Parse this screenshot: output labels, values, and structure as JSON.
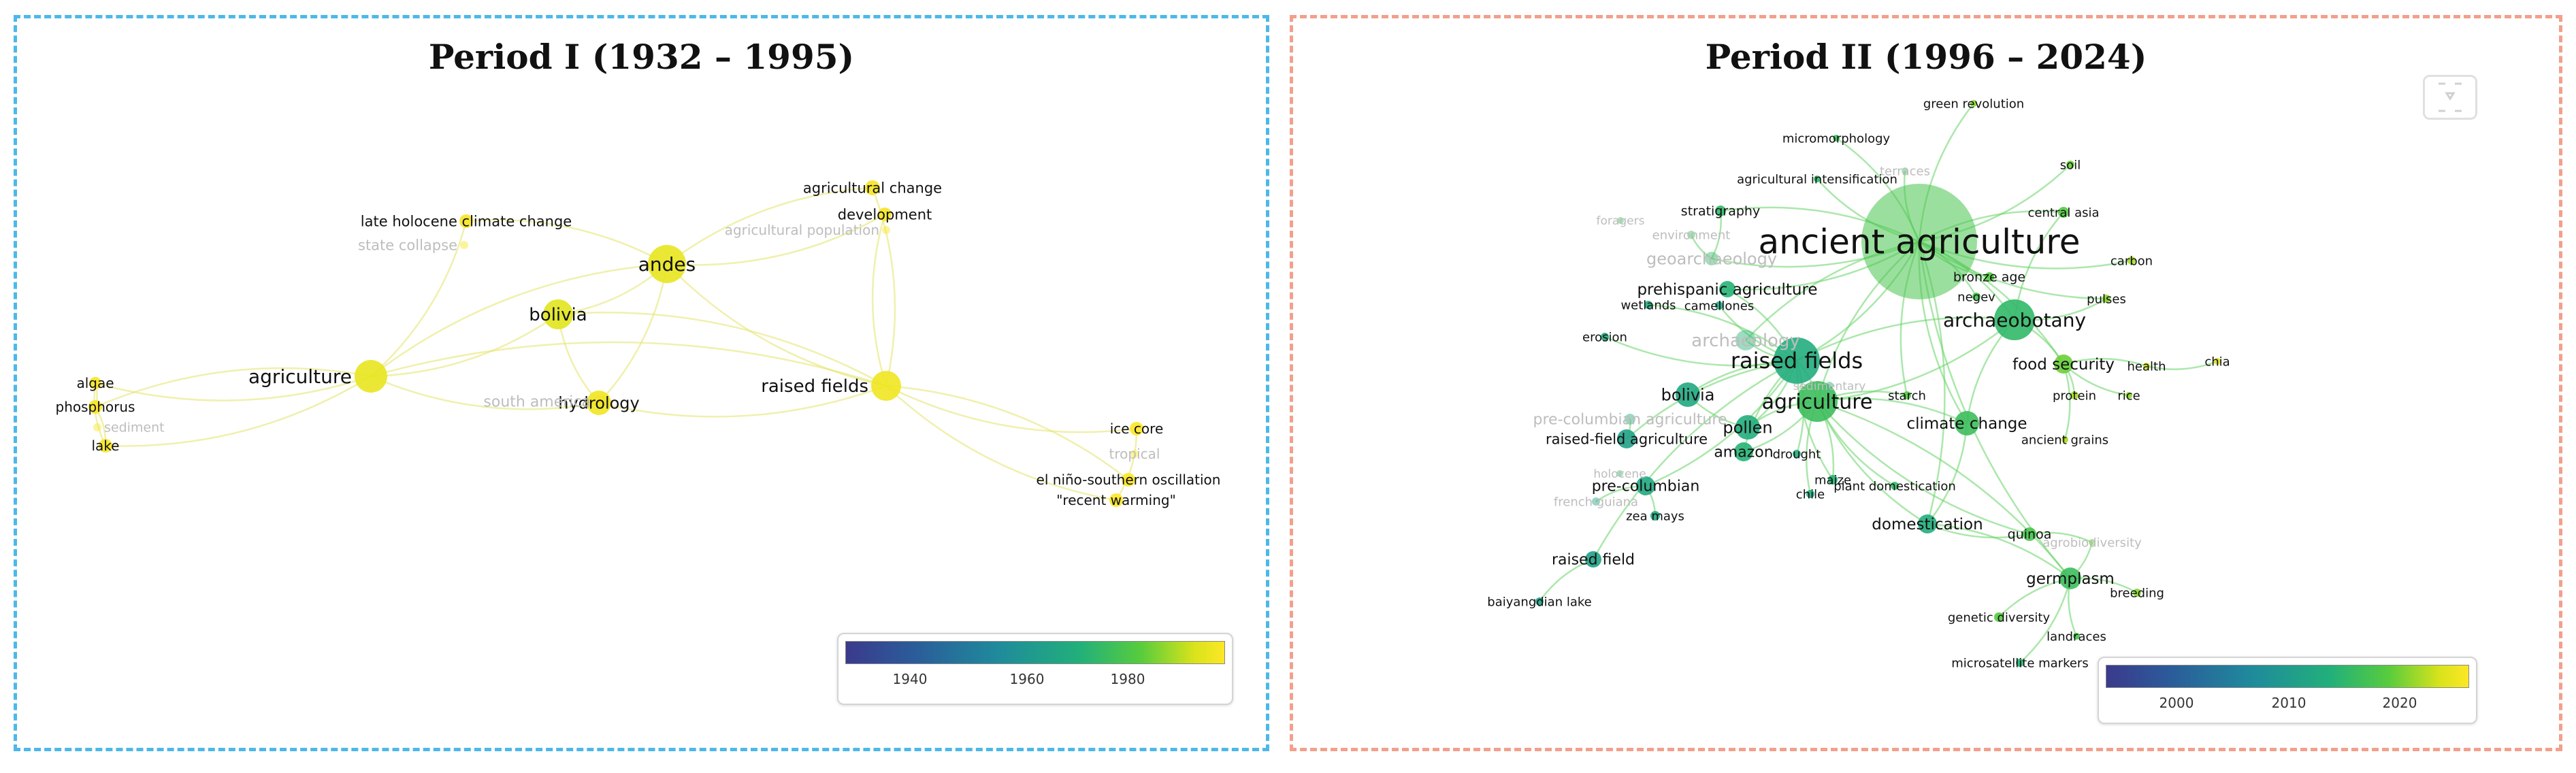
{
  "panels": [
    {
      "title": "Period I (1932 – 1995)",
      "legend": {
        "ticks": [
          "1940",
          "1960",
          "1980"
        ]
      },
      "nodes": [
        {
          "label": "agriculture",
          "year": 1992,
          "weight": 6,
          "fade": false
        },
        {
          "label": "andes",
          "year": 1992,
          "weight": 6,
          "fade": false
        },
        {
          "label": "bolivia",
          "year": 1991,
          "weight": 5,
          "fade": false
        },
        {
          "label": "raised fields",
          "year": 1993,
          "weight": 5,
          "fade": false
        },
        {
          "label": "hydrology",
          "year": 1993,
          "weight": 4,
          "fade": false
        },
        {
          "label": "south america",
          "year": 1993,
          "weight": 3,
          "fade": true
        },
        {
          "label": "late holocene climate change",
          "year": 1994,
          "weight": 2,
          "fade": false
        },
        {
          "label": "state collapse",
          "year": 1994,
          "weight": 1,
          "fade": true
        },
        {
          "label": "agricultural change",
          "year": 1994,
          "weight": 2,
          "fade": false
        },
        {
          "label": "development",
          "year": 1994,
          "weight": 2,
          "fade": false
        },
        {
          "label": "agricultural population",
          "year": 1994,
          "weight": 1,
          "fade": true
        },
        {
          "label": "algae",
          "year": 1994,
          "weight": 2,
          "fade": false
        },
        {
          "label": "phosphorus",
          "year": 1994,
          "weight": 2,
          "fade": false
        },
        {
          "label": "sediment",
          "year": 1994,
          "weight": 1,
          "fade": true
        },
        {
          "label": "lake",
          "year": 1994,
          "weight": 2,
          "fade": false
        },
        {
          "label": "ice core",
          "year": 1995,
          "weight": 2,
          "fade": false
        },
        {
          "label": "tropical",
          "year": 1995,
          "weight": 1,
          "fade": true
        },
        {
          "label": "el niño-southern oscillation",
          "year": 1995,
          "weight": 2,
          "fade": false
        },
        {
          "label": "\"recent warming\"",
          "year": 1995,
          "weight": 2,
          "fade": false
        }
      ],
      "links": [
        [
          "agriculture",
          "andes"
        ],
        [
          "agriculture",
          "bolivia"
        ],
        [
          "agriculture",
          "raised fields"
        ],
        [
          "agriculture",
          "hydrology"
        ],
        [
          "agriculture",
          "algae"
        ],
        [
          "agriculture",
          "phosphorus"
        ],
        [
          "agriculture",
          "lake"
        ],
        [
          "agriculture",
          "late holocene climate change"
        ],
        [
          "andes",
          "bolivia"
        ],
        [
          "andes",
          "raised fields"
        ],
        [
          "andes",
          "hydrology"
        ],
        [
          "andes",
          "late holocene climate change"
        ],
        [
          "andes",
          "agricultural change"
        ],
        [
          "andes",
          "development"
        ],
        [
          "bolivia",
          "raised fields"
        ],
        [
          "bolivia",
          "hydrology"
        ],
        [
          "raised fields",
          "hydrology"
        ],
        [
          "raised fields",
          "agricultural change"
        ],
        [
          "raised fields",
          "development"
        ],
        [
          "raised fields",
          "ice core"
        ],
        [
          "raised fields",
          "el niño-southern oscillation"
        ],
        [
          "raised fields",
          "\"recent warming\""
        ],
        [
          "hydrology",
          "south america"
        ],
        [
          "phosphorus",
          "algae"
        ],
        [
          "phosphorus",
          "lake"
        ],
        [
          "algae",
          "lake"
        ],
        [
          "ice core",
          "\"recent warming\""
        ]
      ]
    },
    {
      "title": "Period II (1996 – 2024)",
      "legend": {
        "ticks": [
          "2000",
          "2010",
          "2020"
        ]
      },
      "nodes": [
        {
          "label": "ancient agriculture",
          "year": 2017,
          "weight": 10,
          "fade": false
        },
        {
          "label": "archaeobotany",
          "year": 2015,
          "weight": 6,
          "fade": false
        },
        {
          "label": "raised fields",
          "year": 2013,
          "weight": 6,
          "fade": false
        },
        {
          "label": "agriculture",
          "year": 2016,
          "weight": 6,
          "fade": false
        },
        {
          "label": "archaeology",
          "year": 2014,
          "weight": 4,
          "fade": true
        },
        {
          "label": "bolivia",
          "year": 2012,
          "weight": 4,
          "fade": false
        },
        {
          "label": "pollen",
          "year": 2013,
          "weight": 4,
          "fade": false
        },
        {
          "label": "climate change",
          "year": 2016,
          "weight": 4,
          "fade": false
        },
        {
          "label": "prehispanic agriculture",
          "year": 2014,
          "weight": 3,
          "fade": false
        },
        {
          "label": "geoarchaeology",
          "year": 2015,
          "weight": 3,
          "fade": true
        },
        {
          "label": "food security",
          "year": 2019,
          "weight": 3,
          "fade": false
        },
        {
          "label": "domestication",
          "year": 2013,
          "weight": 3,
          "fade": false
        },
        {
          "label": "germplasm",
          "year": 2016,
          "weight": 3,
          "fade": false
        },
        {
          "label": "amazon",
          "year": 2014,
          "weight": 3,
          "fade": false
        },
        {
          "label": "pre-columbian",
          "year": 2012,
          "weight": 3,
          "fade": false
        },
        {
          "label": "raised-field agriculture",
          "year": 2011,
          "weight": 3,
          "fade": false
        },
        {
          "label": "raised field",
          "year": 2011,
          "weight": 3,
          "fade": false
        },
        {
          "label": "pre-columbian agriculture",
          "year": 2013,
          "weight": 2,
          "fade": true
        },
        {
          "label": "green revolution",
          "year": 2020,
          "weight": 1,
          "fade": false
        },
        {
          "label": "micromorphology",
          "year": 2016,
          "weight": 1,
          "fade": false
        },
        {
          "label": "agricultural intensification",
          "year": 2015,
          "weight": 1,
          "fade": false
        },
        {
          "label": "terraces",
          "year": 2016,
          "weight": 1,
          "fade": true
        },
        {
          "label": "soil",
          "year": 2019,
          "weight": 1,
          "fade": false
        },
        {
          "label": "stratigraphy",
          "year": 2015,
          "weight": 1,
          "fade": false
        },
        {
          "label": "central asia",
          "year": 2018,
          "weight": 1,
          "fade": false
        },
        {
          "label": "carbon",
          "year": 2021,
          "weight": 1,
          "fade": false
        },
        {
          "label": "bronze age",
          "year": 2018,
          "weight": 1,
          "fade": false
        },
        {
          "label": "negev",
          "year": 2017,
          "weight": 1,
          "fade": false
        },
        {
          "label": "pulses",
          "year": 2020,
          "weight": 1,
          "fade": false
        },
        {
          "label": "wetlands",
          "year": 2013,
          "weight": 1,
          "fade": false
        },
        {
          "label": "camellones",
          "year": 2012,
          "weight": 1,
          "fade": false
        },
        {
          "label": "erosion",
          "year": 2012,
          "weight": 1,
          "fade": false
        },
        {
          "label": "health",
          "year": 2022,
          "weight": 1,
          "fade": false
        },
        {
          "label": "chia",
          "year": 2023,
          "weight": 1,
          "fade": false
        },
        {
          "label": "protein",
          "year": 2021,
          "weight": 1,
          "fade": false
        },
        {
          "label": "rice",
          "year": 2020,
          "weight": 1,
          "fade": false
        },
        {
          "label": "starch",
          "year": 2018,
          "weight": 1,
          "fade": false
        },
        {
          "label": "ancient grains",
          "year": 2021,
          "weight": 1,
          "fade": false
        },
        {
          "label": "drought",
          "year": 2013,
          "weight": 1,
          "fade": false
        },
        {
          "label": "maize",
          "year": 2014,
          "weight": 1,
          "fade": false
        },
        {
          "label": "chile",
          "year": 2013,
          "weight": 1,
          "fade": false
        },
        {
          "label": "plant domestication",
          "year": 2015,
          "weight": 1,
          "fade": false
        },
        {
          "label": "zea mays",
          "year": 2012,
          "weight": 1,
          "fade": false
        },
        {
          "label": "french guiana",
          "year": 2011,
          "weight": 1,
          "fade": true
        },
        {
          "label": "quinoa",
          "year": 2017,
          "weight": 2,
          "fade": false
        },
        {
          "label": "agrobiodiversity",
          "year": 2019,
          "weight": 1,
          "fade": true
        },
        {
          "label": "breeding",
          "year": 2020,
          "weight": 1,
          "fade": false
        },
        {
          "label": "genetic diversity",
          "year": 2018,
          "weight": 1,
          "fade": false
        },
        {
          "label": "landraces",
          "year": 2017,
          "weight": 1,
          "fade": false
        },
        {
          "label": "microsatellite markers",
          "year": 2014,
          "weight": 1,
          "fade": false
        },
        {
          "label": "baiyangdian lake",
          "year": 2011,
          "weight": 1,
          "fade": false
        },
        {
          "label": "environment",
          "year": 2016,
          "weight": 1,
          "fade": true
        },
        {
          "label": "sedimentary",
          "year": 2014,
          "weight": 1,
          "fade": true
        },
        {
          "label": "foragers",
          "year": 2016,
          "weight": 1,
          "fade": true
        },
        {
          "label": "holocene",
          "year": 2015,
          "weight": 1,
          "fade": true
        }
      ],
      "links": [
        [
          "ancient agriculture",
          "archaeobotany"
        ],
        [
          "ancient agriculture",
          "agriculture"
        ],
        [
          "ancient agriculture",
          "raised fields"
        ],
        [
          "ancient agriculture",
          "climate change"
        ],
        [
          "ancient agriculture",
          "green revolution"
        ],
        [
          "ancient agriculture",
          "micromorphology"
        ],
        [
          "ancient agriculture",
          "agricultural intensification"
        ],
        [
          "ancient agriculture",
          "soil"
        ],
        [
          "ancient agriculture",
          "central asia"
        ],
        [
          "ancient agriculture",
          "carbon"
        ],
        [
          "ancient agriculture",
          "food security"
        ],
        [
          "ancient agriculture",
          "stratigraphy"
        ],
        [
          "ancient agriculture",
          "geoarchaeology"
        ],
        [
          "ancient agriculture",
          "bronze age"
        ],
        [
          "ancient agriculture",
          "negev"
        ],
        [
          "ancient agriculture",
          "pulses"
        ],
        [
          "ancient agriculture",
          "domestication"
        ],
        [
          "ancient agriculture",
          "germplasm"
        ],
        [
          "ancient agriculture",
          "prehispanic agriculture"
        ],
        [
          "ancient agriculture",
          "archaeology"
        ],
        [
          "ancient agriculture",
          "terraces"
        ],
        [
          "ancient agriculture",
          "starch"
        ],
        [
          "archaeobotany",
          "agriculture"
        ],
        [
          "archaeobotany",
          "climate change"
        ],
        [
          "archaeobotany",
          "food security"
        ],
        [
          "archaeobotany",
          "pulses"
        ],
        [
          "archaeobotany",
          "central asia"
        ],
        [
          "archaeobotany",
          "raised fields"
        ],
        [
          "raised fields",
          "agriculture"
        ],
        [
          "raised fields",
          "bolivia"
        ],
        [
          "raised fields",
          "pollen"
        ],
        [
          "raised fields",
          "raised-field agriculture"
        ],
        [
          "raised fields",
          "camellones"
        ],
        [
          "raised fields",
          "wetlands"
        ],
        [
          "raised fields",
          "erosion"
        ],
        [
          "raised fields",
          "prehispanic agriculture"
        ],
        [
          "raised fields",
          "archaeology"
        ],
        [
          "raised fields",
          "amazon"
        ],
        [
          "raised fields",
          "pre-columbian"
        ],
        [
          "raised fields",
          "raised field"
        ],
        [
          "raised fields",
          "drought"
        ],
        [
          "raised fields",
          "maize"
        ],
        [
          "agriculture",
          "climate change"
        ],
        [
          "agriculture",
          "domestication"
        ],
        [
          "agriculture",
          "germplasm"
        ],
        [
          "agriculture",
          "pollen"
        ],
        [
          "agriculture",
          "amazon"
        ],
        [
          "agriculture",
          "plant domestication"
        ],
        [
          "agriculture",
          "starch"
        ],
        [
          "agriculture",
          "quinoa"
        ],
        [
          "agriculture",
          "maize"
        ],
        [
          "agriculture",
          "chile"
        ],
        [
          "food security",
          "health"
        ],
        [
          "health",
          "chia"
        ],
        [
          "food security",
          "protein"
        ],
        [
          "food security",
          "rice"
        ],
        [
          "food security",
          "ancient grains"
        ],
        [
          "domestication",
          "quinoa"
        ],
        [
          "domestication",
          "germplasm"
        ],
        [
          "germplasm",
          "genetic diversity"
        ],
        [
          "germplasm",
          "breeding"
        ],
        [
          "germplasm",
          "landraces"
        ],
        [
          "germplasm",
          "microsatellite markers"
        ],
        [
          "germplasm",
          "agrobiodiversity"
        ],
        [
          "quinoa",
          "agrobiodiversity"
        ],
        [
          "raised field",
          "baiyangdian lake"
        ],
        [
          "pre-columbian",
          "zea mays"
        ],
        [
          "pre-columbian",
          "french guiana"
        ],
        [
          "pre-columbian agriculture",
          "raised-field agriculture"
        ],
        [
          "bolivia",
          "pollen"
        ],
        [
          "climate change",
          "domestication"
        ],
        [
          "geoarchaeology",
          "stratigraphy"
        ],
        [
          "geoarchaeology",
          "environment"
        ]
      ]
    }
  ]
}
